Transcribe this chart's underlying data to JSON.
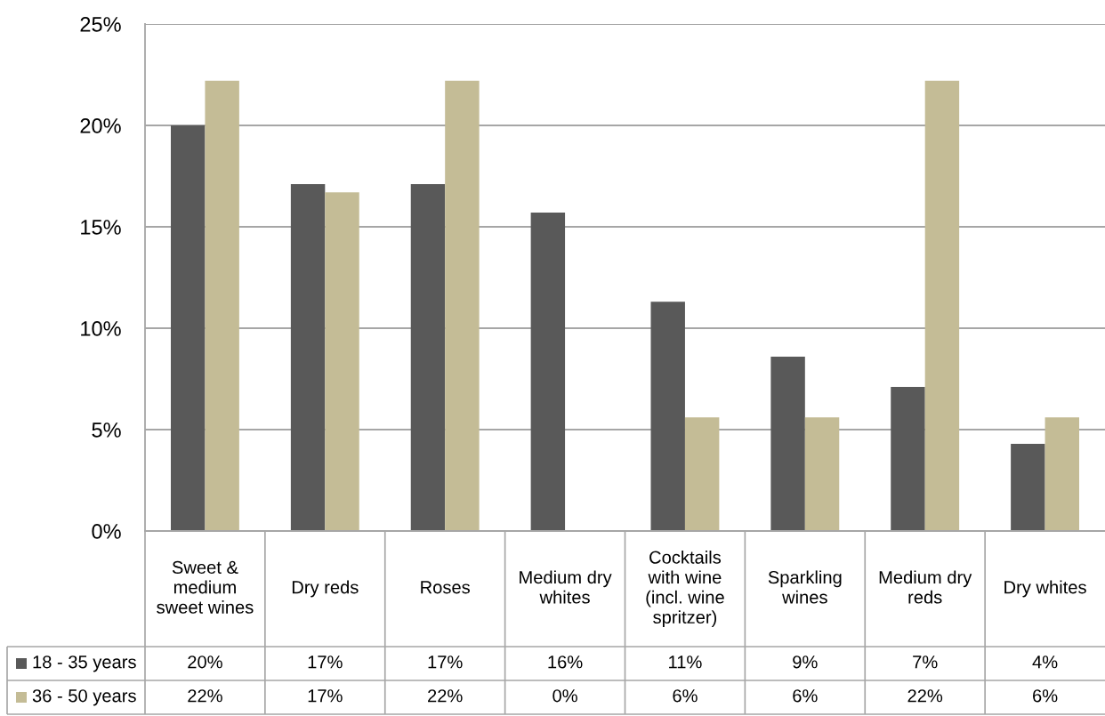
{
  "chart_data": {
    "type": "bar",
    "categories": [
      "Sweet & medium sweet wines",
      "Dry reds",
      "Roses",
      "Medium dry whites",
      "Cocktails with wine (incl. wine spritzer)",
      "Sparkling wines",
      "Medium dry reds",
      "Dry whites"
    ],
    "series": [
      {
        "name": "18 - 35 years",
        "color": "#595959",
        "values": [
          20.0,
          17.1,
          17.1,
          15.7,
          11.3,
          8.6,
          7.1,
          4.3
        ],
        "value_labels": [
          "20%",
          "17%",
          "17%",
          "16%",
          "11%",
          "9%",
          "7%",
          "4%"
        ]
      },
      {
        "name": "36 - 50 years",
        "color": "#c4bc96",
        "values": [
          22.2,
          16.7,
          22.2,
          0,
          5.6,
          5.6,
          22.2,
          5.6
        ],
        "value_labels": [
          "22%",
          "17%",
          "22%",
          "0%",
          "6%",
          "6%",
          "22%",
          "6%"
        ]
      }
    ],
    "ylim": [
      0,
      25
    ],
    "yticks": [
      {
        "value": 0,
        "label": "0%"
      },
      {
        "value": 5,
        "label": "5%"
      },
      {
        "value": 10,
        "label": "10%"
      },
      {
        "value": 15,
        "label": "15%"
      },
      {
        "value": 20,
        "label": "20%"
      },
      {
        "value": 25,
        "label": "25%"
      }
    ],
    "grid": "y",
    "legend": "bottom left"
  }
}
